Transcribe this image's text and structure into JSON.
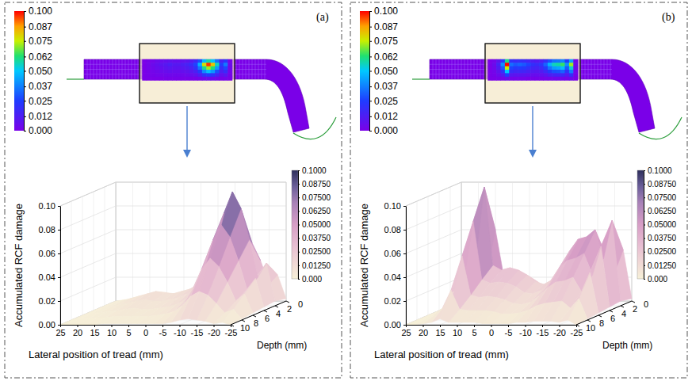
{
  "chart_data": [
    {
      "type": "surface",
      "panel_label": "(a)",
      "grid": true,
      "x_label": "Lateral position of tread (mm)",
      "y_label": "Depth (mm)",
      "z_label": "Accumulated RCF damage",
      "x": [
        25,
        22.5,
        20,
        17.5,
        15,
        12.5,
        10,
        7.5,
        5,
        2.5,
        0,
        -2.5,
        -5,
        -7.5,
        -10,
        -12.5,
        -15,
        -17.5,
        -20,
        -22.5,
        -25
      ],
      "y": [
        0,
        2,
        4,
        6,
        8,
        10
      ],
      "z": [
        [
          0,
          0.001,
          0.002,
          0.004,
          0.005,
          0.006,
          0.007,
          0.006,
          0.006,
          0.007,
          0.008,
          0.011,
          0.016,
          0.028,
          0.047,
          0.058,
          0.049,
          0.034,
          0.014,
          0.022,
          0.002
        ],
        [
          0,
          0.002,
          0.004,
          0.006,
          0.008,
          0.01,
          0.012,
          0.01,
          0.01,
          0.012,
          0.014,
          0.018,
          0.026,
          0.046,
          0.078,
          0.096,
          0.082,
          0.056,
          0.024,
          0.036,
          0.004
        ],
        [
          0,
          0.002,
          0.003,
          0.005,
          0.006,
          0.008,
          0.009,
          0.008,
          0.008,
          0.009,
          0.011,
          0.014,
          0.02,
          0.035,
          0.059,
          0.072,
          0.062,
          0.042,
          0.018,
          0.027,
          0.003
        ],
        [
          0,
          0.001,
          0.002,
          0.003,
          0.004,
          0.005,
          0.006,
          0.005,
          0.005,
          0.006,
          0.007,
          0.009,
          0.013,
          0.023,
          0.039,
          0.048,
          0.041,
          0.028,
          0.012,
          0.018,
          0.002
        ],
        [
          0,
          0.001,
          0.001,
          0.002,
          0.002,
          0.003,
          0.003,
          0.003,
          0.003,
          0.003,
          0.004,
          0.005,
          0.007,
          0.012,
          0.02,
          0.024,
          0.021,
          0.014,
          0.006,
          0.009,
          0.001
        ],
        [
          0,
          0,
          0,
          0,
          0,
          0.001,
          0.001,
          0.001,
          0.001,
          0.001,
          0.001,
          0.001,
          0.001,
          0.002,
          0.004,
          0.005,
          0.004,
          0.003,
          0.001,
          0.002,
          0
        ]
      ],
      "xlim": [
        25,
        -25
      ],
      "xticks": [
        25,
        20,
        15,
        10,
        5,
        0,
        -5,
        -10,
        -15,
        -20,
        -25
      ],
      "ylim": [
        10,
        0
      ],
      "yticks": [
        10,
        8,
        6,
        4,
        2,
        0
      ],
      "zlim": [
        0,
        0.1
      ],
      "zticks": [
        {
          "value": 0,
          "label": "0.00"
        },
        {
          "value": 0.02,
          "label": "0.02"
        },
        {
          "value": 0.04,
          "label": "0.04"
        },
        {
          "value": 0.06,
          "label": "0.06"
        },
        {
          "value": 0.08,
          "label": "0.08"
        },
        {
          "value": 0.1,
          "label": "0.10"
        }
      ],
      "colorbar": {
        "range": [
          0,
          0.1
        ],
        "ticks": [
          {
            "value": 0.1,
            "label": "0.1000"
          },
          {
            "value": 0.0875,
            "label": "0.08750"
          },
          {
            "value": 0.075,
            "label": "0.07500"
          },
          {
            "value": 0.0625,
            "label": "0.06250"
          },
          {
            "value": 0.05,
            "label": "0.05000"
          },
          {
            "value": 0.0375,
            "label": "0.03750"
          },
          {
            "value": 0.025,
            "label": "0.02500"
          },
          {
            "value": 0.0125,
            "label": "0.01250"
          },
          {
            "value": 0,
            "label": "0.000"
          }
        ]
      },
      "contour_colorbar": {
        "range": [
          0,
          0.1
        ],
        "ticks": [
          {
            "value": 0.1,
            "label": "0.100"
          },
          0.087,
          0.075,
          0.062,
          {
            "value": 0.05,
            "label": "0.050"
          },
          0.037,
          0.025,
          0.012,
          {
            "value": 0,
            "label": "0.000"
          }
        ]
      }
    },
    {
      "type": "surface",
      "panel_label": "(b)",
      "grid": true,
      "x_label": "Lateral position of tread (mm)",
      "y_label": "Depth (mm)",
      "z_label": "Accumulated RCF damage",
      "x": [
        25,
        22.5,
        20,
        17.5,
        15,
        12.5,
        10,
        7.5,
        5,
        2.5,
        0,
        -2.5,
        -5,
        -7.5,
        -10,
        -12.5,
        -15,
        -17.5,
        -20,
        -22.5,
        -25
      ],
      "y": [
        0,
        2,
        4,
        6,
        8,
        10
      ],
      "z": [
        [
          0,
          0.002,
          0.008,
          0.024,
          0.06,
          0.02,
          0.018,
          0.019,
          0.018,
          0.016,
          0.012,
          0.011,
          0.013,
          0.019,
          0.028,
          0.034,
          0.035,
          0.038,
          0.024,
          0.043,
          0.002
        ],
        [
          0,
          0.004,
          0.014,
          0.04,
          0.1,
          0.034,
          0.03,
          0.032,
          0.03,
          0.026,
          0.02,
          0.018,
          0.022,
          0.032,
          0.046,
          0.056,
          0.058,
          0.064,
          0.04,
          0.072,
          0.004
        ],
        [
          0,
          0.003,
          0.011,
          0.03,
          0.075,
          0.026,
          0.023,
          0.024,
          0.023,
          0.02,
          0.015,
          0.014,
          0.017,
          0.024,
          0.035,
          0.042,
          0.044,
          0.048,
          0.03,
          0.054,
          0.003
        ],
        [
          0,
          0.002,
          0.007,
          0.02,
          0.05,
          0.017,
          0.015,
          0.016,
          0.015,
          0.013,
          0.01,
          0.009,
          0.011,
          0.016,
          0.023,
          0.028,
          0.029,
          0.032,
          0.02,
          0.036,
          0.002
        ],
        [
          0,
          0.001,
          0.004,
          0.01,
          0.025,
          0.009,
          0.008,
          0.008,
          0.008,
          0.007,
          0.005,
          0.005,
          0.006,
          0.008,
          0.012,
          0.014,
          0.015,
          0.016,
          0.01,
          0.018,
          0.001
        ],
        [
          0,
          0,
          0.001,
          0.002,
          0.005,
          0.002,
          0.002,
          0.002,
          0.002,
          0.001,
          0.001,
          0.001,
          0.001,
          0.002,
          0.002,
          0.003,
          0.003,
          0.003,
          0.002,
          0.004,
          0
        ]
      ],
      "xlim": [
        25,
        -25
      ],
      "xticks": [
        25,
        20,
        15,
        10,
        5,
        0,
        -5,
        -10,
        -15,
        -20,
        -25
      ],
      "ylim": [
        10,
        0
      ],
      "yticks": [
        10,
        8,
        6,
        4,
        2,
        0
      ],
      "zlim": [
        0,
        0.1
      ],
      "zticks": [
        {
          "value": 0,
          "label": "0.00"
        },
        {
          "value": 0.02,
          "label": "0.02"
        },
        {
          "value": 0.04,
          "label": "0.04"
        },
        {
          "value": 0.06,
          "label": "0.06"
        },
        {
          "value": 0.08,
          "label": "0.08"
        },
        {
          "value": 0.1,
          "label": "0.10"
        }
      ],
      "colorbar": {
        "range": [
          0,
          0.1
        ],
        "ticks": [
          {
            "value": 0.1,
            "label": "0.1000"
          },
          {
            "value": 0.0875,
            "label": "0.08750"
          },
          {
            "value": 0.075,
            "label": "0.07500"
          },
          {
            "value": 0.0625,
            "label": "0.06250"
          },
          {
            "value": 0.05,
            "label": "0.05000"
          },
          {
            "value": 0.0375,
            "label": "0.03750"
          },
          {
            "value": 0.025,
            "label": "0.02500"
          },
          {
            "value": 0.0125,
            "label": "0.01250"
          },
          {
            "value": 0,
            "label": "0.000"
          }
        ]
      },
      "contour_colorbar": {
        "range": [
          0,
          0.1
        ],
        "ticks": [
          {
            "value": 0.1,
            "label": "0.100"
          },
          0.087,
          0.075,
          0.062,
          {
            "value": 0.05,
            "label": "0.050"
          },
          0.037,
          0.025,
          0.012,
          {
            "value": 0,
            "label": "0.000"
          }
        ]
      }
    }
  ]
}
